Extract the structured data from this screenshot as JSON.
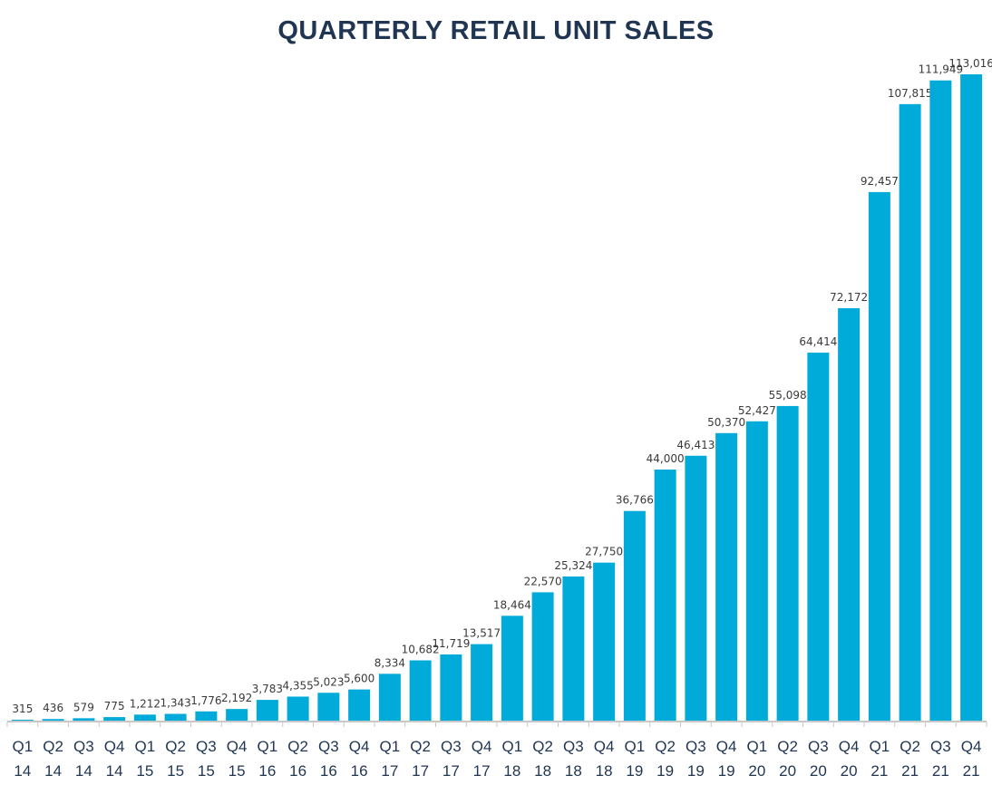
{
  "chart_data": {
    "type": "bar",
    "title": "QUARTERLY RETAIL UNIT SALES",
    "xlabel": "",
    "ylabel": "",
    "ylim": [
      0,
      113016
    ],
    "grid": false,
    "bar_color": "#00aad9",
    "axis_color": "#c8c8c8",
    "title_color": "#1f3552",
    "categories": [
      {
        "quarter": "Q1",
        "year": "14"
      },
      {
        "quarter": "Q2",
        "year": "14"
      },
      {
        "quarter": "Q3",
        "year": "14"
      },
      {
        "quarter": "Q4",
        "year": "14"
      },
      {
        "quarter": "Q1",
        "year": "15"
      },
      {
        "quarter": "Q2",
        "year": "15"
      },
      {
        "quarter": "Q3",
        "year": "15"
      },
      {
        "quarter": "Q4",
        "year": "15"
      },
      {
        "quarter": "Q1",
        "year": "16"
      },
      {
        "quarter": "Q2",
        "year": "16"
      },
      {
        "quarter": "Q3",
        "year": "16"
      },
      {
        "quarter": "Q4",
        "year": "16"
      },
      {
        "quarter": "Q1",
        "year": "17"
      },
      {
        "quarter": "Q2",
        "year": "17"
      },
      {
        "quarter": "Q3",
        "year": "17"
      },
      {
        "quarter": "Q4",
        "year": "17"
      },
      {
        "quarter": "Q1",
        "year": "18"
      },
      {
        "quarter": "Q2",
        "year": "18"
      },
      {
        "quarter": "Q3",
        "year": "18"
      },
      {
        "quarter": "Q4",
        "year": "18"
      },
      {
        "quarter": "Q1",
        "year": "19"
      },
      {
        "quarter": "Q2",
        "year": "19"
      },
      {
        "quarter": "Q3",
        "year": "19"
      },
      {
        "quarter": "Q4",
        "year": "19"
      },
      {
        "quarter": "Q1",
        "year": "20"
      },
      {
        "quarter": "Q2",
        "year": "20"
      },
      {
        "quarter": "Q3",
        "year": "20"
      },
      {
        "quarter": "Q4",
        "year": "20"
      },
      {
        "quarter": "Q1",
        "year": "21"
      },
      {
        "quarter": "Q2",
        "year": "21"
      },
      {
        "quarter": "Q3",
        "year": "21"
      },
      {
        "quarter": "Q4",
        "year": "21"
      }
    ],
    "values": [
      315,
      436,
      579,
      775,
      1212,
      1343,
      1776,
      2192,
      3783,
      4355,
      5023,
      5600,
      8334,
      10682,
      11719,
      13517,
      18464,
      22570,
      25324,
      27750,
      36766,
      44000,
      46413,
      50370,
      52427,
      55098,
      64414,
      72172,
      92457,
      107815,
      111949,
      113016
    ],
    "data_labels": [
      "315",
      "436",
      "579",
      "775",
      "1,212",
      "1,343",
      "1,776",
      "2,192",
      "3,783",
      "4,355",
      "5,023",
      "5,600",
      "8,334",
      "10,682",
      "11,719",
      "13,517",
      "18,464",
      "22,570",
      "25,324",
      "27,750",
      "36,766",
      "44,000",
      "46,413",
      "50,370",
      "52,427",
      "55,098",
      "64,414",
      "72,172",
      "92,457",
      "107,815",
      "111,949",
      "113,016"
    ]
  }
}
